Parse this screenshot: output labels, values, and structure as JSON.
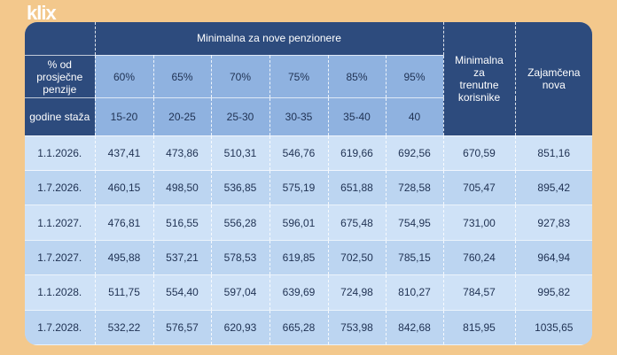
{
  "logo": "klix",
  "header": {
    "title": "Minimalna za nove penzionere",
    "row_label_percent": "% od prosječne penzije",
    "row_label_years": "godine staža",
    "percents": [
      "60%",
      "65%",
      "70%",
      "75%",
      "85%",
      "95%"
    ],
    "years": [
      "15-20",
      "20-25",
      "25-30",
      "30-35",
      "35-40",
      "40"
    ],
    "col_current": "Minimalna za trenutne korisnike",
    "col_guaranteed": "Zajamčena nova"
  },
  "table": {
    "rows": [
      [
        "1.1.2026.",
        "437,41",
        "473,86",
        "510,31",
        "546,76",
        "619,66",
        "692,56",
        "670,59",
        "851,16"
      ],
      [
        "1.7.2026.",
        "460,15",
        "498,50",
        "536,85",
        "575,19",
        "651,88",
        "728,58",
        "705,47",
        "895,42"
      ],
      [
        "1.1.2027.",
        "476,81",
        "516,55",
        "556,28",
        "596,01",
        "675,48",
        "754,95",
        "731,00",
        "927,83"
      ],
      [
        "1.7.2027.",
        "495,88",
        "537,21",
        "578,53",
        "619,85",
        "702,50",
        "785,15",
        "760,24",
        "964,94"
      ],
      [
        "1.1.2028.",
        "511,75",
        "554,40",
        "597,04",
        "639,69",
        "724,98",
        "810,27",
        "784,57",
        "995,82"
      ],
      [
        "1.7.2028.",
        "532,22",
        "576,57",
        "620,93",
        "665,28",
        "753,98",
        "842,68",
        "815,95",
        "1035,65"
      ]
    ]
  }
}
